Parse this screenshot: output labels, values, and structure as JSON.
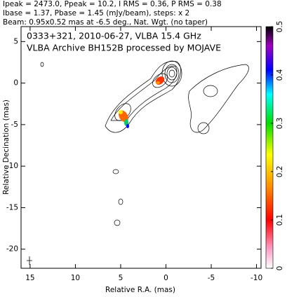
{
  "chart_data": {
    "type": "contour",
    "header": [
      "Ipeak = 2473.0, Ppeak = 10.2, I RMS = 0.36, P RMS = 0.38",
      "Ibase = 1.37, Pbase = 1.45 (mJy/beam), steps: x 2",
      "Beam: 0.95x0.52 mas at -6.5 deg., Nat. Wgt. (no taper)"
    ],
    "title": "0333+321, 2010-06-27, VLBA 15.4 GHz",
    "subtitle": "VLBA Archive BH152B processed by MOJAVE",
    "xlabel": "Relative R.A. (mas)",
    "ylabel": "Relative Decination (mas)",
    "xlim": [
      16,
      -10.5
    ],
    "xticks": [
      15,
      10,
      5,
      0,
      -5,
      -10
    ],
    "ylim": [
      -22.3,
      6.8
    ],
    "yticks": [
      5,
      0,
      -5,
      -10,
      -15,
      -20
    ],
    "colorbar": {
      "lim": [
        0,
        0.5
      ],
      "ticks": [
        0,
        0.1,
        0.2,
        0.3,
        0.4,
        0.5
      ]
    }
  }
}
